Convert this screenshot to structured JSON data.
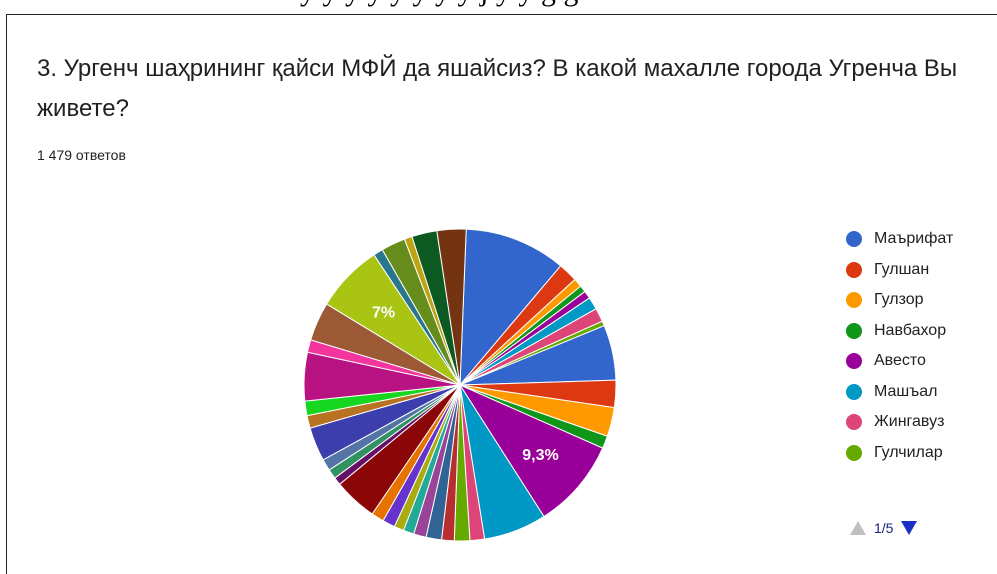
{
  "header_fragment": "y  y  y  y  y  y  y  y  j y  y g g",
  "question": {
    "title": "3. Ургенч шаҳрининг қайси МФЙ да яшайсиз? В какой махалле города Угренча Вы живете?",
    "responses": "1 479 ответов"
  },
  "legend": {
    "items": [
      {
        "label": "Маърифат",
        "color": "#3366cc"
      },
      {
        "label": "Гулшан",
        "color": "#dc3912"
      },
      {
        "label": "Гулзор",
        "color": "#ff9900"
      },
      {
        "label": "Навбахор",
        "color": "#109618"
      },
      {
        "label": "Авесто",
        "color": "#990099"
      },
      {
        "label": "Машъал",
        "color": "#0099c6"
      },
      {
        "label": "Жингавуз",
        "color": "#dd4477"
      },
      {
        "label": "Гулчилар",
        "color": "#66aa00"
      }
    ],
    "pager": {
      "text": "1/5",
      "up_icon": "triangle-up-icon",
      "down_icon": "triangle-down-icon"
    }
  },
  "chart_data": {
    "type": "pie",
    "visible_labels": [
      "9,3%",
      "7%"
    ],
    "slices": [
      {
        "value": 10.5,
        "color": "#3366cc"
      },
      {
        "value": 2.0,
        "color": "#dc3912"
      },
      {
        "value": 0.9,
        "color": "#ff9900"
      },
      {
        "value": 0.7,
        "color": "#109618"
      },
      {
        "value": 0.8,
        "color": "#990099"
      },
      {
        "value": 1.3,
        "color": "#0099c6"
      },
      {
        "value": 1.4,
        "color": "#dd4477"
      },
      {
        "value": 0.5,
        "color": "#66aa00"
      },
      {
        "value": 5.7,
        "color": "#3366cc"
      },
      {
        "value": 2.8,
        "color": "#dc3912"
      },
      {
        "value": 3.0,
        "color": "#ff9900"
      },
      {
        "value": 1.3,
        "color": "#109618"
      },
      {
        "value": 9.3,
        "color": "#990099",
        "label": "9,3%"
      },
      {
        "value": 6.5,
        "color": "#0099c6"
      },
      {
        "value": 1.5,
        "color": "#dd4477"
      },
      {
        "value": 1.6,
        "color": "#66aa00"
      },
      {
        "value": 1.3,
        "color": "#b82e2e"
      },
      {
        "value": 1.6,
        "color": "#316395"
      },
      {
        "value": 1.3,
        "color": "#994499"
      },
      {
        "value": 1.1,
        "color": "#22aa99"
      },
      {
        "value": 1.0,
        "color": "#aaaa11"
      },
      {
        "value": 1.3,
        "color": "#6633cc"
      },
      {
        "value": 1.3,
        "color": "#e67300"
      },
      {
        "value": 4.5,
        "color": "#8b0707"
      },
      {
        "value": 0.8,
        "color": "#651067"
      },
      {
        "value": 1.0,
        "color": "#329262"
      },
      {
        "value": 1.2,
        "color": "#5574a6"
      },
      {
        "value": 3.5,
        "color": "#3b3eac"
      },
      {
        "value": 1.3,
        "color": "#b77322"
      },
      {
        "value": 1.5,
        "color": "#16d620"
      },
      {
        "value": 5.0,
        "color": "#b91383"
      },
      {
        "value": 1.3,
        "color": "#f4359e"
      },
      {
        "value": 4.0,
        "color": "#9c5935"
      },
      {
        "value": 7.0,
        "color": "#a9c413",
        "label": "7%"
      },
      {
        "value": 1.0,
        "color": "#2a778d"
      },
      {
        "value": 2.5,
        "color": "#668d1c"
      },
      {
        "value": 0.8,
        "color": "#bea413"
      },
      {
        "value": 2.6,
        "color": "#0c5922"
      },
      {
        "value": 3.0,
        "color": "#743411"
      }
    ]
  }
}
